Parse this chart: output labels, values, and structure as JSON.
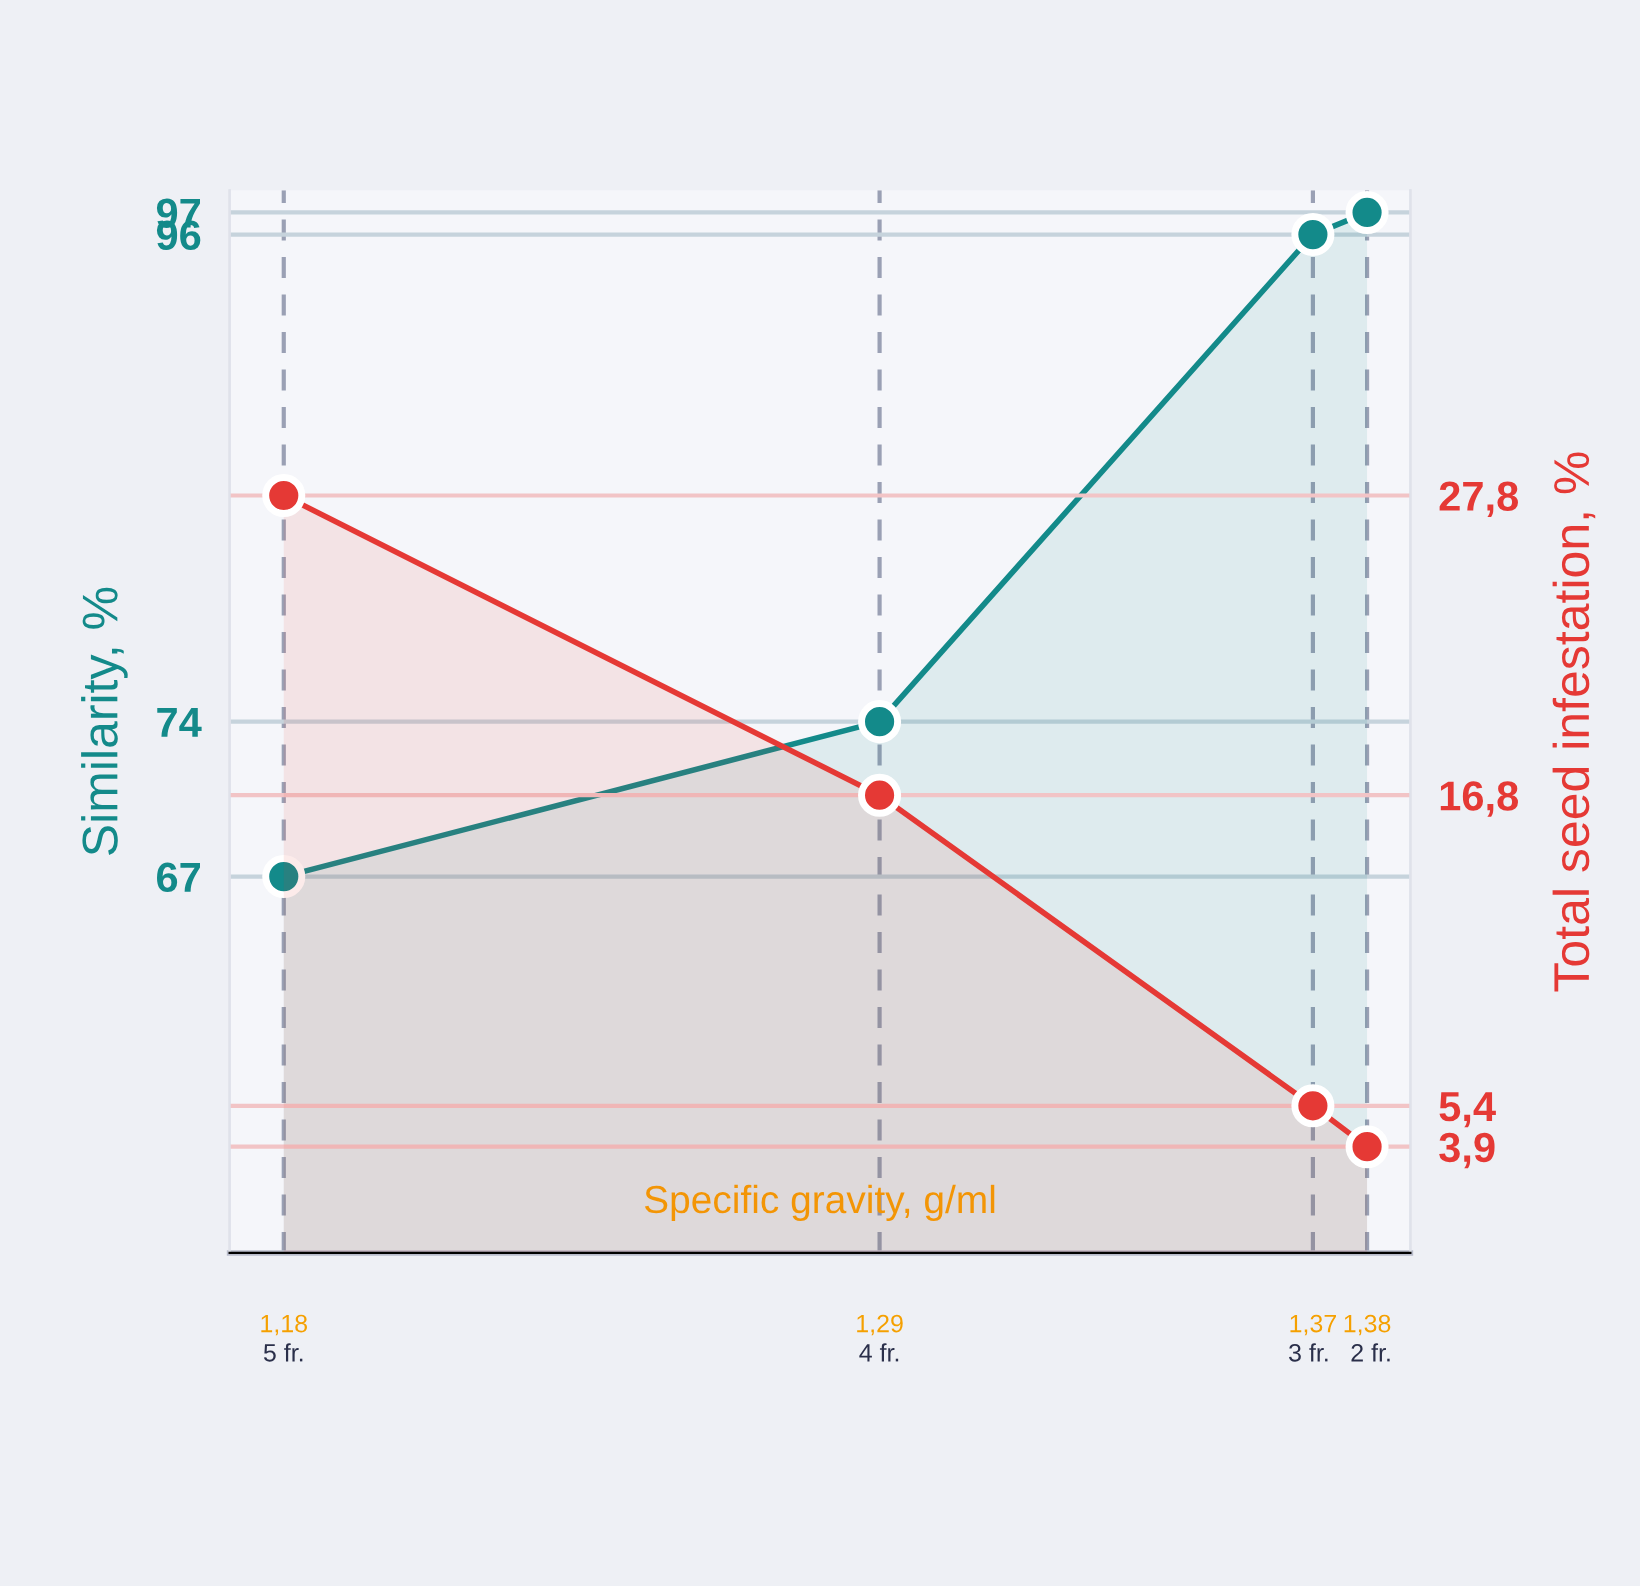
{
  "chart_data": {
    "type": "area",
    "xlabel": "Specific gravity, g/ml",
    "ylabel": "Similarity, %",
    "y2label": "Total seed infestation, %",
    "x": [
      1.18,
      1.29,
      1.37,
      1.38
    ],
    "series": [
      {
        "name": null,
        "color": "#138a8a",
        "values": [
          67,
          74,
          96,
          97
        ]
      },
      {
        "name": null,
        "color": "#e53935",
        "values": [
          27.8,
          16.8,
          5.4,
          3.9
        ],
        "axis": "y2"
      }
    ],
    "xlim": [
      1.17,
      1.388
    ],
    "ylim": [
      50,
      98
    ],
    "y2lim": [
      0,
      39
    ],
    "xticks": [
      {
        "value": 1.18,
        "label": "1,18"
      },
      {
        "value": 1.29,
        "label": "1,29"
      },
      {
        "value": 1.37,
        "label": "1,37"
      },
      {
        "value": 1.38,
        "label": "1,38"
      }
    ],
    "annotations": [
      "5 fr.",
      "4 fr.",
      "3 fr.",
      "2 fr."
    ],
    "yticks": [
      67,
      74,
      96,
      97
    ],
    "y2ticks": [
      {
        "value": 27.8,
        "label": "27,8"
      },
      {
        "value": 16.8,
        "label": "16,8"
      },
      {
        "value": 5.4,
        "label": "5,4"
      },
      {
        "value": 3.9,
        "label": "3,9"
      }
    ],
    "grid": true,
    "marker": "circle",
    "line_style": "solid",
    "legend": false
  }
}
